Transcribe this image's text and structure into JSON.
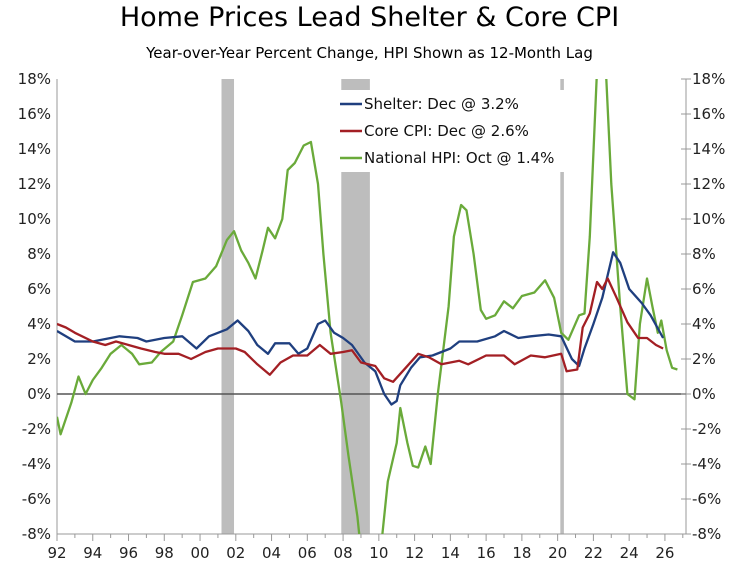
{
  "chart_data": {
    "type": "line",
    "title": "Home Prices Lead Shelter & Core CPI",
    "subtitle": "Year-over-Year Percent Change, HPI Shown as 12-Month Lag",
    "xlabel": "",
    "ylabel": "",
    "xlim": [
      1992,
      2027.2
    ],
    "ylim": [
      -8,
      18
    ],
    "x_ticks": [
      "92",
      "94",
      "96",
      "98",
      "00",
      "02",
      "04",
      "06",
      "08",
      "10",
      "12",
      "14",
      "16",
      "18",
      "20",
      "22",
      "24",
      "26"
    ],
    "y_ticks": [
      "-8%",
      "-6%",
      "-4%",
      "-2%",
      "0%",
      "2%",
      "4%",
      "6%",
      "8%",
      "10%",
      "12%",
      "14%",
      "16%",
      "18%"
    ],
    "legend_position": "top-center",
    "recessions": [
      [
        2001.2,
        2001.9
      ],
      [
        2007.9,
        2009.5
      ],
      [
        2020.15,
        2020.35
      ]
    ],
    "series": [
      {
        "name": "Shelter: Dec @ 3.2%",
        "color": "#1f3f7f",
        "points": [
          [
            1992,
            3.6
          ],
          [
            1993,
            3.0
          ],
          [
            1994,
            3.0
          ],
          [
            1995.5,
            3.3
          ],
          [
            1996.5,
            3.2
          ],
          [
            1997,
            3.0
          ],
          [
            1998,
            3.2
          ],
          [
            1999,
            3.3
          ],
          [
            1999.8,
            2.6
          ],
          [
            2000.5,
            3.3
          ],
          [
            2001.5,
            3.7
          ],
          [
            2002.1,
            4.2
          ],
          [
            2002.7,
            3.6
          ],
          [
            2003.2,
            2.8
          ],
          [
            2003.8,
            2.3
          ],
          [
            2004.2,
            2.9
          ],
          [
            2005,
            2.9
          ],
          [
            2005.5,
            2.3
          ],
          [
            2006,
            2.6
          ],
          [
            2006.6,
            4.0
          ],
          [
            2007,
            4.2
          ],
          [
            2007.5,
            3.5
          ],
          [
            2008,
            3.2
          ],
          [
            2008.5,
            2.8
          ],
          [
            2009.2,
            1.8
          ],
          [
            2009.8,
            1.3
          ],
          [
            2010.3,
            0.0
          ],
          [
            2010.7,
            -0.6
          ],
          [
            2011,
            -0.4
          ],
          [
            2011.2,
            0.5
          ],
          [
            2011.8,
            1.5
          ],
          [
            2012.3,
            2.1
          ],
          [
            2013,
            2.2
          ],
          [
            2014,
            2.6
          ],
          [
            2014.5,
            3.0
          ],
          [
            2015.5,
            3.0
          ],
          [
            2016.5,
            3.3
          ],
          [
            2017,
            3.6
          ],
          [
            2017.8,
            3.2
          ],
          [
            2018.5,
            3.3
          ],
          [
            2019.5,
            3.4
          ],
          [
            2020.2,
            3.3
          ],
          [
            2020.8,
            2.0
          ],
          [
            2021.2,
            1.6
          ],
          [
            2021.5,
            2.6
          ],
          [
            2022,
            4.0
          ],
          [
            2022.5,
            5.5
          ],
          [
            2023.1,
            8.1
          ],
          [
            2023.5,
            7.5
          ],
          [
            2024,
            6.0
          ],
          [
            2024.7,
            5.2
          ],
          [
            2025.2,
            4.5
          ],
          [
            2025.9,
            3.2
          ]
        ]
      },
      {
        "name": "Core CPI: Dec @ 2.6%",
        "color": "#a31f24",
        "points": [
          [
            1992,
            4.0
          ],
          [
            1992.5,
            3.8
          ],
          [
            1993,
            3.5
          ],
          [
            1994,
            3.0
          ],
          [
            1994.7,
            2.8
          ],
          [
            1995.3,
            3.0
          ],
          [
            1996,
            2.8
          ],
          [
            1996.7,
            2.6
          ],
          [
            1997.5,
            2.4
          ],
          [
            1998,
            2.3
          ],
          [
            1998.8,
            2.3
          ],
          [
            1999.5,
            2.0
          ],
          [
            2000.3,
            2.4
          ],
          [
            2001,
            2.6
          ],
          [
            2002,
            2.6
          ],
          [
            2002.5,
            2.4
          ],
          [
            2003.2,
            1.7
          ],
          [
            2003.9,
            1.1
          ],
          [
            2004.5,
            1.8
          ],
          [
            2005.2,
            2.2
          ],
          [
            2006,
            2.2
          ],
          [
            2006.7,
            2.8
          ],
          [
            2007.3,
            2.3
          ],
          [
            2008,
            2.4
          ],
          [
            2008.5,
            2.5
          ],
          [
            2009,
            1.8
          ],
          [
            2009.8,
            1.6
          ],
          [
            2010.3,
            0.9
          ],
          [
            2010.8,
            0.7
          ],
          [
            2011.5,
            1.5
          ],
          [
            2012.2,
            2.3
          ],
          [
            2012.8,
            2.1
          ],
          [
            2013.5,
            1.7
          ],
          [
            2014.5,
            1.9
          ],
          [
            2015,
            1.7
          ],
          [
            2016,
            2.2
          ],
          [
            2017,
            2.2
          ],
          [
            2017.6,
            1.7
          ],
          [
            2018.5,
            2.2
          ],
          [
            2019.3,
            2.1
          ],
          [
            2020.2,
            2.3
          ],
          [
            2020.5,
            1.3
          ],
          [
            2021.1,
            1.4
          ],
          [
            2021.4,
            3.8
          ],
          [
            2021.8,
            4.6
          ],
          [
            2022.2,
            6.4
          ],
          [
            2022.5,
            6.0
          ],
          [
            2022.8,
            6.6
          ],
          [
            2023.3,
            5.5
          ],
          [
            2023.9,
            4.1
          ],
          [
            2024.5,
            3.2
          ],
          [
            2025,
            3.2
          ],
          [
            2025.5,
            2.8
          ],
          [
            2025.9,
            2.6
          ]
        ]
      },
      {
        "name": "National HPI: Oct @ 1.4%",
        "color": "#6aaa3a",
        "points": [
          [
            1992,
            -1.3
          ],
          [
            1992.2,
            -2.3
          ],
          [
            1992.8,
            -0.5
          ],
          [
            1993.2,
            1.0
          ],
          [
            1993.6,
            0.0
          ],
          [
            1994,
            0.8
          ],
          [
            1994.5,
            1.5
          ],
          [
            1995,
            2.3
          ],
          [
            1995.6,
            2.8
          ],
          [
            1996.2,
            2.3
          ],
          [
            1996.6,
            1.7
          ],
          [
            1997.3,
            1.8
          ],
          [
            1997.8,
            2.4
          ],
          [
            1998.5,
            3.0
          ],
          [
            1999,
            4.5
          ],
          [
            1999.6,
            6.4
          ],
          [
            2000.3,
            6.6
          ],
          [
            2000.9,
            7.3
          ],
          [
            2001.5,
            8.8
          ],
          [
            2001.9,
            9.3
          ],
          [
            2002.3,
            8.2
          ],
          [
            2002.7,
            7.5
          ],
          [
            2003.1,
            6.6
          ],
          [
            2003.5,
            8.2
          ],
          [
            2003.8,
            9.5
          ],
          [
            2004.2,
            8.9
          ],
          [
            2004.6,
            10.0
          ],
          [
            2004.9,
            12.8
          ],
          [
            2005.3,
            13.2
          ],
          [
            2005.8,
            14.2
          ],
          [
            2006.2,
            14.4
          ],
          [
            2006.6,
            12.0
          ],
          [
            2006.9,
            8.0
          ],
          [
            2007.3,
            3.5
          ],
          [
            2007.9,
            -0.5
          ],
          [
            2008.3,
            -3.5
          ],
          [
            2008.8,
            -7.0
          ],
          [
            2009.0,
            -9
          ],
          [
            2010.1,
            -9
          ],
          [
            2010.5,
            -5
          ],
          [
            2011,
            -2.8
          ],
          [
            2011.2,
            -0.8
          ],
          [
            2011.6,
            -2.8
          ],
          [
            2011.9,
            -4.1
          ],
          [
            2012.2,
            -4.2
          ],
          [
            2012.6,
            -3.0
          ],
          [
            2012.9,
            -4.0
          ],
          [
            2013.3,
            0.0
          ],
          [
            2013.9,
            5.0
          ],
          [
            2014.2,
            9.0
          ],
          [
            2014.6,
            10.8
          ],
          [
            2014.9,
            10.5
          ],
          [
            2015.3,
            8.0
          ],
          [
            2015.7,
            4.8
          ],
          [
            2016,
            4.3
          ],
          [
            2016.5,
            4.5
          ],
          [
            2017,
            5.3
          ],
          [
            2017.5,
            4.9
          ],
          [
            2018,
            5.6
          ],
          [
            2018.7,
            5.8
          ],
          [
            2019.3,
            6.5
          ],
          [
            2019.8,
            5.5
          ],
          [
            2020.2,
            3.5
          ],
          [
            2020.6,
            3.1
          ],
          [
            2021.2,
            4.5
          ],
          [
            2021.5,
            4.6
          ],
          [
            2021.8,
            9
          ],
          [
            2022.2,
            18.5
          ],
          [
            2022.7,
            18.5
          ],
          [
            2023.0,
            12
          ],
          [
            2023.5,
            5
          ],
          [
            2023.9,
            0
          ],
          [
            2024.3,
            -0.3
          ],
          [
            2024.6,
            4
          ],
          [
            2025.0,
            6.6
          ],
          [
            2025.3,
            5
          ],
          [
            2025.6,
            3.5
          ],
          [
            2025.8,
            4.2
          ],
          [
            2026.1,
            2.5
          ],
          [
            2026.4,
            1.5
          ],
          [
            2026.7,
            1.4
          ]
        ]
      }
    ]
  }
}
